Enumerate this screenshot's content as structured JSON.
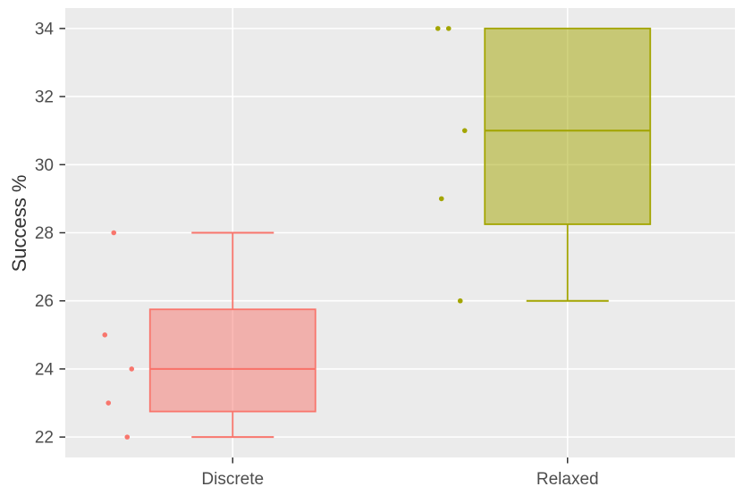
{
  "chart_data": {
    "type": "boxplot",
    "title": "",
    "ylabel": "Success %",
    "xlabel": "",
    "categories": [
      "Discrete",
      "Relaxed"
    ],
    "yticks": [
      22,
      24,
      26,
      28,
      30,
      32,
      34
    ],
    "ylim": [
      21.4,
      34.6
    ],
    "grid": "white major gridlines on gray panel",
    "legend": false,
    "panel_bg": "#EBEBEB",
    "gridline_color": "#FFFFFF",
    "tick_color": "#333333",
    "axis_text_color": "#4D4D4D",
    "axis_title_color": "#333333",
    "series": [
      {
        "name": "Discrete",
        "color": "#F8766D",
        "box": {
          "whisker_low": 22,
          "q1": 22.75,
          "median": 24,
          "q3": 25.75,
          "whisker_high": 28
        },
        "points": [
          {
            "value": 28,
            "dx": -133
          },
          {
            "value": 25,
            "dx": -143
          },
          {
            "value": 24,
            "dx": -113
          },
          {
            "value": 23,
            "dx": -139
          },
          {
            "value": 22,
            "dx": -118
          }
        ]
      },
      {
        "name": "Relaxed",
        "color": "#A3A500",
        "box": {
          "whisker_low": 26,
          "q1": 28.25,
          "median": 31,
          "q3": 34,
          "whisker_high": 34
        },
        "points": [
          {
            "value": 34,
            "dx": -145
          },
          {
            "value": 34,
            "dx": -133
          },
          {
            "value": 31,
            "dx": -115
          },
          {
            "value": 29,
            "dx": -141
          },
          {
            "value": 26,
            "dx": -120
          }
        ]
      }
    ]
  }
}
